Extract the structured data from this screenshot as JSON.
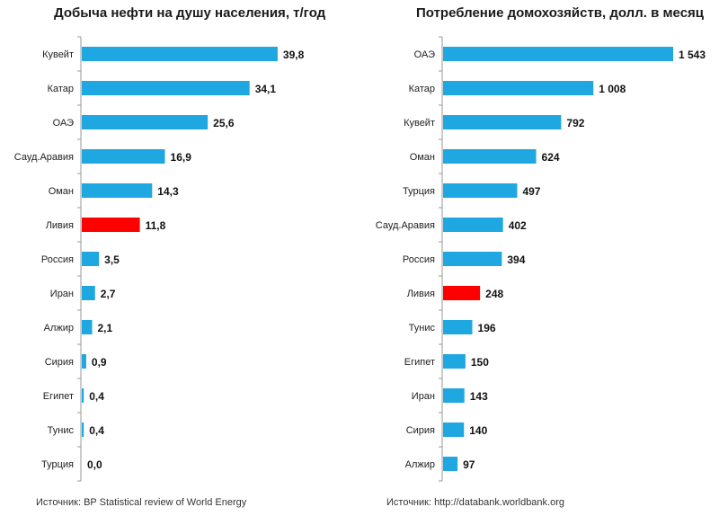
{
  "colors": {
    "bar": "#1ea7e1",
    "highlight": "#ff0000",
    "axis": "#9a9a9a"
  },
  "chart_data": [
    {
      "type": "bar",
      "orientation": "horizontal",
      "title": "Добыча нефти на душу населения, т/год",
      "categories": [
        "Кувейт",
        "Катар",
        "ОАЭ",
        "Сауд.Аравия",
        "Оман",
        "Ливия",
        "Россия",
        "Иран",
        "Алжир",
        "Сирия",
        "Египет",
        "Тунис",
        "Турция"
      ],
      "values": [
        39.8,
        34.1,
        25.6,
        16.9,
        14.3,
        11.8,
        3.5,
        2.7,
        2.1,
        0.9,
        0.4,
        0.4,
        0.0
      ],
      "value_labels": [
        "39,8",
        "34,1",
        "25,6",
        "16,9",
        "14,3",
        "11,8",
        "3,5",
        "2,7",
        "2,1",
        "0,9",
        "0,4",
        "0,4",
        "0,0"
      ],
      "highlight": "Ливия",
      "xlim": [
        0,
        40
      ],
      "source": "Источник: BP Statistical review of World Energy"
    },
    {
      "type": "bar",
      "orientation": "horizontal",
      "title": "Потребление домохозяйств, долл. в месяц",
      "categories": [
        "ОАЭ",
        "Катар",
        "Кувейт",
        "Оман",
        "Турция",
        "Сауд.Аравия",
        "Россия",
        "Ливия",
        "Тунис",
        "Египет",
        "Иран",
        "Сирия",
        "Алжир"
      ],
      "values": [
        1543,
        1008,
        792,
        624,
        497,
        402,
        394,
        248,
        196,
        150,
        143,
        140,
        97
      ],
      "value_labels": [
        "1 543",
        "1 008",
        "792",
        "624",
        "497",
        "402",
        "394",
        "248",
        "196",
        "150",
        "143",
        "140",
        "97"
      ],
      "highlight": "Ливия",
      "xlim": [
        0,
        1543
      ],
      "source": "Источник: http://databank.worldbank.org"
    }
  ]
}
